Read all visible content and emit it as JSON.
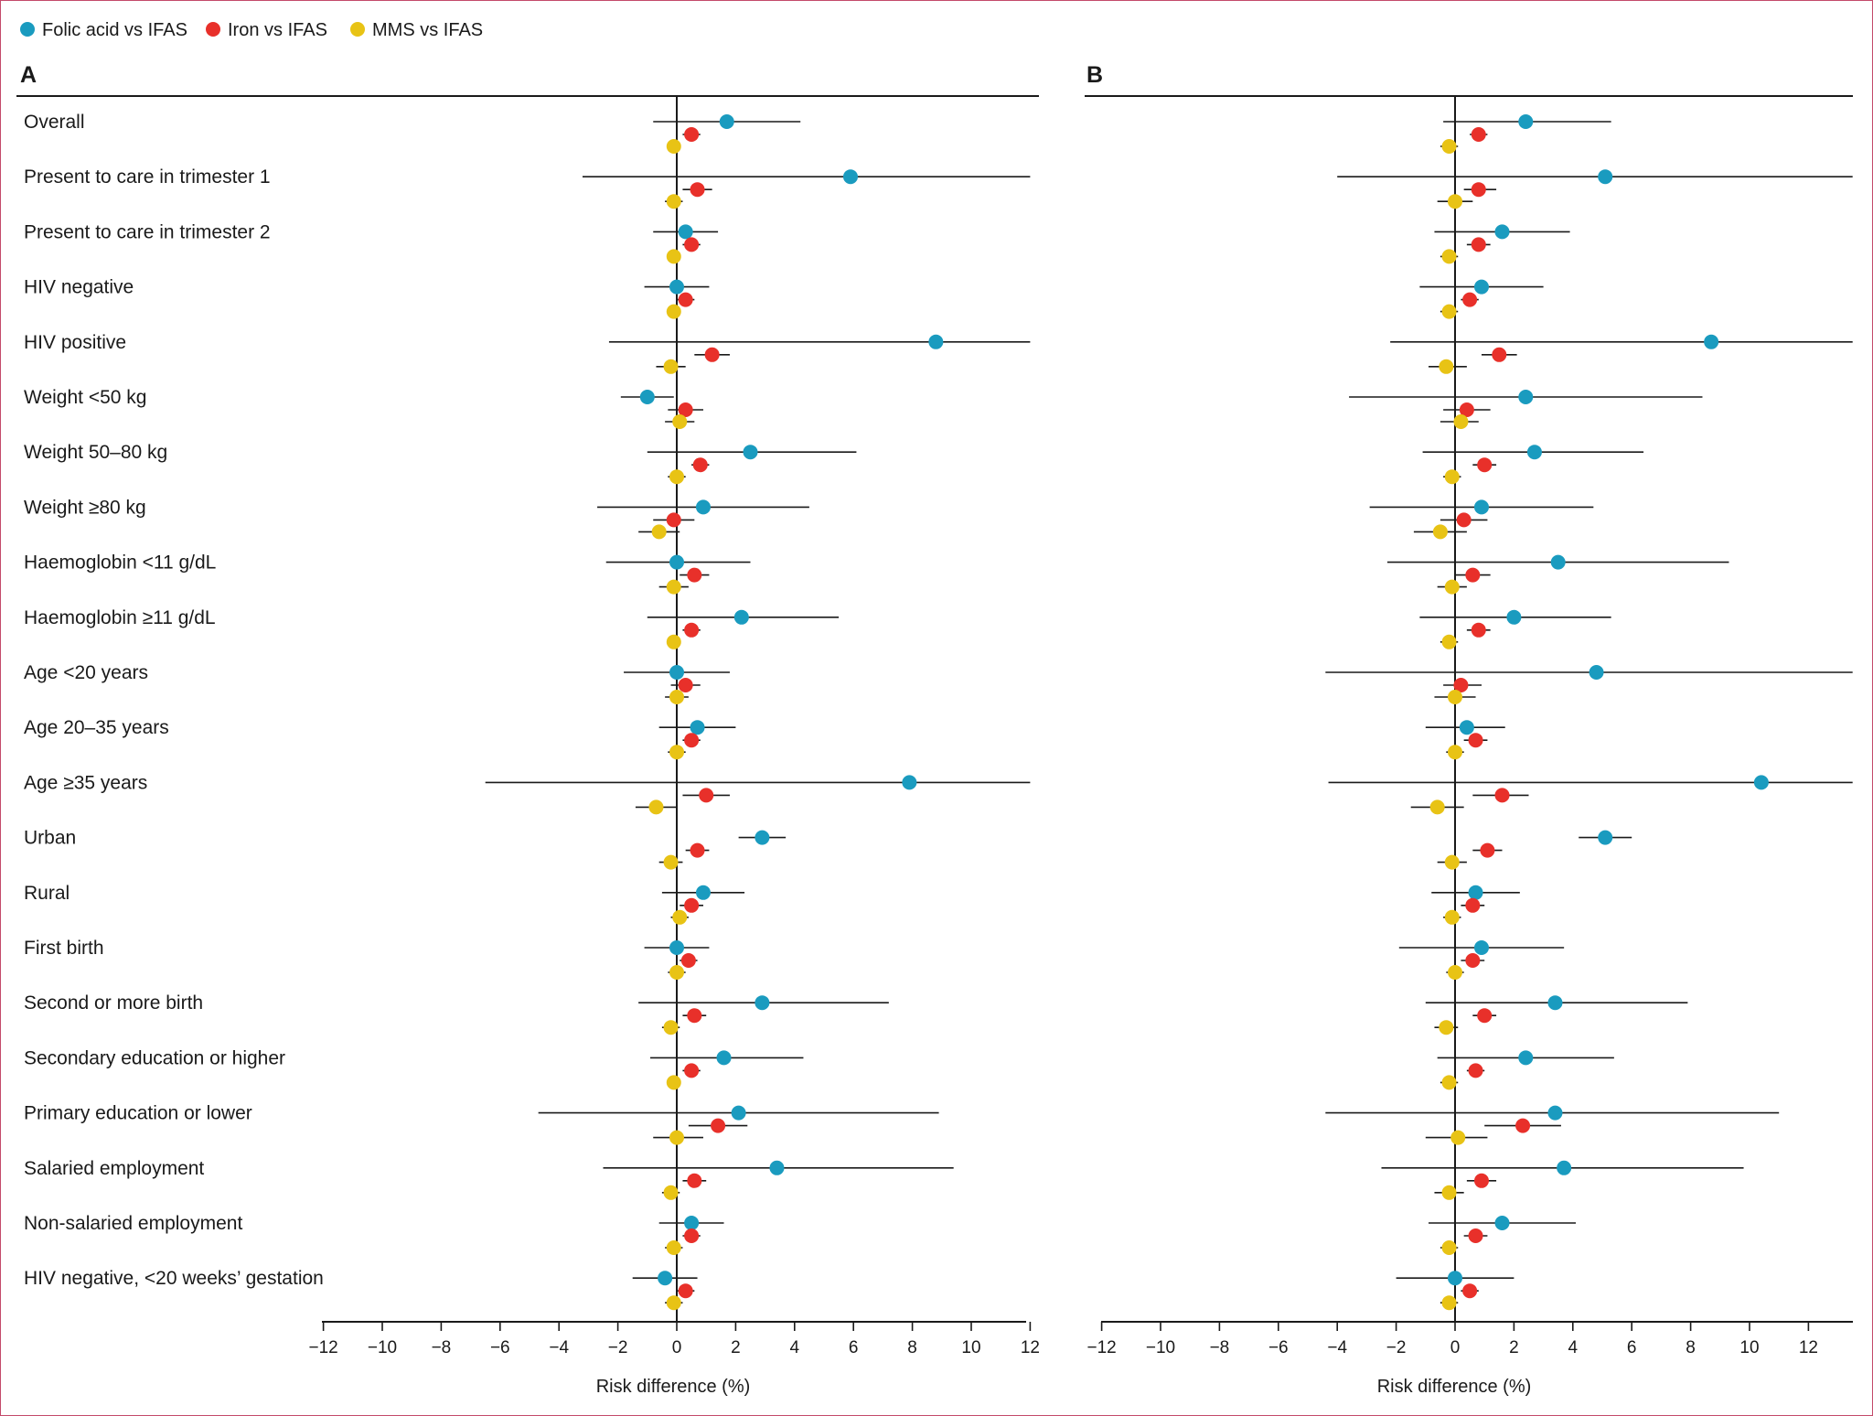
{
  "legend": [
    {
      "label": "Folic acid vs IFAS",
      "color": "#1a9bbf"
    },
    {
      "label": "Iron vs IFAS",
      "color": "#e8302a"
    },
    {
      "label": "MMS vs IFAS",
      "color": "#e8c315"
    }
  ],
  "colors": {
    "folic": "#1a9bbf",
    "iron": "#e8302a",
    "mms": "#e8c315",
    "frame": "#c44a6a"
  },
  "chart_data": [
    {
      "type": "scatter",
      "subtype": "forest-plot",
      "title": "A",
      "xlabel": "Risk difference (%)",
      "xlim": [
        -12,
        12
      ],
      "xticks": [
        "−12",
        "−10",
        "−8",
        "−6",
        "−4",
        "−2",
        "0",
        "2",
        "4",
        "6",
        "8",
        "10",
        "12"
      ],
      "categories": [
        "Overall",
        "Present to care in trimester 1",
        "Present to care in trimester 2",
        "HIV negative",
        "HIV positive",
        "Weight <50 kg",
        "Weight 50–80 kg",
        "Weight ≥80 kg",
        "Haemoglobin <11 g/dL",
        "Haemoglobin ≥11 g/dL",
        "Age <20 years",
        "Age 20–35 years",
        "Age ≥35 years",
        "Urban",
        "Rural",
        "First birth",
        "Second or more birth",
        "Secondary education or higher",
        "Primary education or lower",
        "Salaried employment",
        "Non-salaried employment",
        "HIV negative, <20 weeks’ gestation"
      ],
      "series": [
        {
          "name": "Folic acid vs IFAS",
          "color": "#1a9bbf",
          "estimate": [
            1.7,
            5.9,
            0.3,
            0.0,
            8.8,
            -1.0,
            2.5,
            0.9,
            0.0,
            2.2,
            0.0,
            0.7,
            7.9,
            2.9,
            0.9,
            0.0,
            2.9,
            1.6,
            2.1,
            3.4,
            0.5,
            -0.4
          ],
          "lower": [
            -0.8,
            -3.2,
            -0.8,
            -1.1,
            -2.3,
            -1.9,
            -1.0,
            -2.7,
            -2.4,
            -1.0,
            -1.8,
            -0.6,
            -6.5,
            2.1,
            -0.5,
            -1.1,
            -1.3,
            -0.9,
            -4.7,
            -2.5,
            -0.6,
            -1.5
          ],
          "upper": [
            4.2,
            12.0,
            1.4,
            1.1,
            12.0,
            -0.1,
            6.1,
            4.5,
            2.5,
            5.5,
            1.8,
            2.0,
            12.0,
            3.7,
            2.3,
            1.1,
            7.2,
            4.3,
            8.9,
            9.4,
            1.6,
            0.7
          ]
        },
        {
          "name": "Iron vs IFAS",
          "color": "#e8302a",
          "estimate": [
            0.5,
            0.7,
            0.5,
            0.3,
            1.2,
            0.3,
            0.8,
            -0.1,
            0.6,
            0.5,
            0.3,
            0.5,
            1.0,
            0.7,
            0.5,
            0.4,
            0.6,
            0.5,
            1.4,
            0.6,
            0.5,
            0.3
          ],
          "lower": [
            0.2,
            0.2,
            0.2,
            0.0,
            0.6,
            -0.3,
            0.5,
            -0.8,
            0.1,
            0.2,
            -0.2,
            0.2,
            0.2,
            0.3,
            0.1,
            0.1,
            0.2,
            0.2,
            0.4,
            0.2,
            0.2,
            0.0
          ],
          "upper": [
            0.8,
            1.2,
            0.8,
            0.6,
            1.8,
            0.9,
            1.1,
            0.6,
            1.1,
            0.8,
            0.8,
            0.8,
            1.8,
            1.1,
            0.9,
            0.7,
            1.0,
            0.8,
            2.4,
            1.0,
            0.8,
            0.6
          ]
        },
        {
          "name": "MMS vs IFAS",
          "color": "#e8c315",
          "estimate": [
            -0.1,
            -0.1,
            -0.1,
            -0.1,
            -0.2,
            0.1,
            0.0,
            -0.6,
            -0.1,
            -0.1,
            0.0,
            0.0,
            -0.7,
            -0.2,
            0.1,
            0.0,
            -0.2,
            -0.1,
            0.0,
            -0.2,
            -0.1,
            -0.1
          ],
          "lower": [
            -0.3,
            -0.4,
            -0.3,
            -0.3,
            -0.7,
            -0.4,
            -0.3,
            -1.3,
            -0.6,
            -0.3,
            -0.4,
            -0.3,
            -1.4,
            -0.6,
            -0.2,
            -0.3,
            -0.5,
            -0.3,
            -0.8,
            -0.5,
            -0.4,
            -0.4
          ],
          "upper": [
            0.1,
            0.2,
            0.1,
            0.1,
            0.3,
            0.6,
            0.3,
            0.1,
            0.4,
            0.1,
            0.4,
            0.3,
            0.0,
            0.2,
            0.4,
            0.3,
            0.1,
            0.1,
            0.9,
            0.1,
            0.2,
            0.2
          ]
        }
      ]
    },
    {
      "type": "scatter",
      "subtype": "forest-plot",
      "title": "B",
      "xlabel": "Risk difference (%)",
      "xlim": [
        -12,
        13.5
      ],
      "xticks": [
        "−12",
        "−10",
        "−8",
        "−6",
        "−4",
        "−2",
        "0",
        "2",
        "4",
        "6",
        "8",
        "10",
        "12"
      ],
      "categories": [
        "Overall",
        "Present to care in trimester 1",
        "Present to care in trimester 2",
        "HIV negative",
        "HIV positive",
        "Weight <50 kg",
        "Weight 50–80 kg",
        "Weight ≥80 kg",
        "Haemoglobin <11 g/dL",
        "Haemoglobin ≥11 g/dL",
        "Age <20 years",
        "Age 20–35 years",
        "Age ≥35 years",
        "Urban",
        "Rural",
        "First birth",
        "Second or more birth",
        "Secondary education or higher",
        "Primary education or lower",
        "Salaried employment",
        "Non-salaried employment",
        "HIV negative, <20 weeks’ gestation"
      ],
      "series": [
        {
          "name": "Folic acid vs IFAS",
          "color": "#1a9bbf",
          "estimate": [
            2.4,
            5.1,
            1.6,
            0.9,
            8.7,
            2.4,
            2.7,
            0.9,
            3.5,
            2.0,
            4.8,
            0.4,
            10.4,
            5.1,
            0.7,
            0.9,
            3.4,
            2.4,
            3.4,
            3.7,
            1.6,
            0.0
          ],
          "lower": [
            -0.4,
            -4.0,
            -0.7,
            -1.2,
            -2.2,
            -3.6,
            -1.1,
            -2.9,
            -2.3,
            -1.2,
            -4.4,
            -1.0,
            -4.3,
            4.2,
            -0.8,
            -1.9,
            -1.0,
            -0.6,
            -4.4,
            -2.5,
            -0.9,
            -2.0
          ],
          "upper": [
            5.3,
            13.5,
            3.9,
            3.0,
            13.5,
            8.4,
            6.4,
            4.7,
            9.3,
            5.3,
            13.5,
            1.7,
            13.5,
            6.0,
            2.2,
            3.7,
            7.9,
            5.4,
            11.0,
            9.8,
            4.1,
            2.0
          ]
        },
        {
          "name": "Iron vs IFAS",
          "color": "#e8302a",
          "estimate": [
            0.8,
            0.8,
            0.8,
            0.5,
            1.5,
            0.4,
            1.0,
            0.3,
            0.6,
            0.8,
            0.2,
            0.7,
            1.6,
            1.1,
            0.6,
            0.6,
            1.0,
            0.7,
            2.3,
            0.9,
            0.7,
            0.5
          ],
          "lower": [
            0.5,
            0.3,
            0.4,
            0.2,
            0.9,
            -0.4,
            0.6,
            -0.5,
            0.0,
            0.4,
            -0.4,
            0.3,
            0.6,
            0.6,
            0.2,
            0.2,
            0.6,
            0.4,
            1.0,
            0.4,
            0.3,
            0.2
          ],
          "upper": [
            1.1,
            1.4,
            1.2,
            0.8,
            2.1,
            1.2,
            1.4,
            1.1,
            1.2,
            1.2,
            0.9,
            1.1,
            2.5,
            1.6,
            1.0,
            1.0,
            1.4,
            1.0,
            3.6,
            1.4,
            1.1,
            0.8
          ]
        },
        {
          "name": "MMS vs IFAS",
          "color": "#e8c315",
          "estimate": [
            -0.2,
            0.0,
            -0.2,
            -0.2,
            -0.3,
            0.2,
            -0.1,
            -0.5,
            -0.1,
            -0.2,
            0.0,
            0.0,
            -0.6,
            -0.1,
            -0.1,
            0.0,
            -0.3,
            -0.2,
            0.1,
            -0.2,
            -0.2,
            -0.2
          ],
          "lower": [
            -0.5,
            -0.6,
            -0.5,
            -0.5,
            -0.9,
            -0.5,
            -0.4,
            -1.4,
            -0.6,
            -0.5,
            -0.7,
            -0.3,
            -1.5,
            -0.6,
            -0.4,
            -0.3,
            -0.7,
            -0.5,
            -1.0,
            -0.7,
            -0.5,
            -0.5
          ],
          "upper": [
            0.1,
            0.6,
            0.1,
            0.1,
            0.4,
            0.8,
            0.2,
            0.4,
            0.4,
            0.1,
            0.7,
            0.3,
            0.3,
            0.4,
            0.2,
            0.3,
            0.1,
            0.1,
            1.1,
            0.3,
            0.1,
            0.1
          ]
        }
      ]
    }
  ]
}
